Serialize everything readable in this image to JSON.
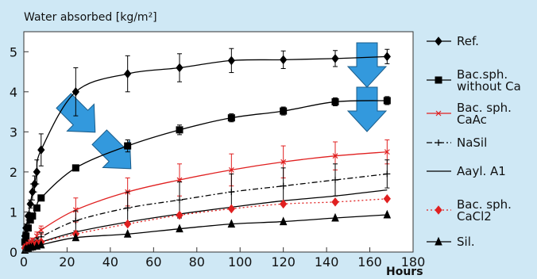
{
  "chart_data": {
    "type": "line",
    "title": "",
    "ylabel": "Water absorbed [kg/m²]",
    "xlabel": "Hours",
    "xlim": [
      0,
      180
    ],
    "ylim": [
      0,
      5.5
    ],
    "xticks": [
      0,
      20,
      40,
      60,
      80,
      100,
      120,
      140,
      160,
      180
    ],
    "yticks": [
      0,
      1,
      2,
      3,
      4,
      5
    ],
    "grid": false,
    "legend_position": "right",
    "series": [
      {
        "name": "Ref.",
        "color": "#000000",
        "dash": "solid",
        "marker": "diamond",
        "marker_fill": "#000000",
        "points": [
          [
            0.5,
            0.4
          ],
          [
            1,
            0.6
          ],
          [
            2,
            0.9
          ],
          [
            3,
            1.2
          ],
          [
            4,
            1.5
          ],
          [
            5,
            1.7
          ],
          [
            6,
            2.0
          ],
          [
            8,
            2.55
          ],
          [
            24,
            4.0
          ],
          [
            48,
            4.45
          ],
          [
            72,
            4.6
          ],
          [
            96,
            4.78
          ],
          [
            120,
            4.8
          ],
          [
            144,
            4.83
          ],
          [
            168,
            4.88
          ]
        ],
        "errors": [
          0.1,
          0.1,
          0.1,
          0.1,
          0.2,
          0.2,
          0.3,
          0.4,
          0.6,
          0.45,
          0.35,
          0.3,
          0.22,
          0.2,
          0.18
        ]
      },
      {
        "name": "Bac.sph. without Ca",
        "color": "#000000",
        "dash": "solid",
        "marker": "square",
        "marker_fill": "#000000",
        "points": [
          [
            0.5,
            0.25
          ],
          [
            1,
            0.4
          ],
          [
            2,
            0.6
          ],
          [
            3,
            0.8
          ],
          [
            4,
            0.9
          ],
          [
            6,
            1.1
          ],
          [
            8,
            1.35
          ],
          [
            24,
            2.1
          ],
          [
            48,
            2.65
          ],
          [
            72,
            3.05
          ],
          [
            96,
            3.35
          ],
          [
            120,
            3.52
          ],
          [
            144,
            3.75
          ],
          [
            168,
            3.78
          ]
        ],
        "errors": [
          0.05,
          0.05,
          0.05,
          0.05,
          0.05,
          0.05,
          0.05,
          0.0,
          0.15,
          0.12,
          0.1,
          0.1,
          0.1,
          0.1
        ]
      },
      {
        "name": "Bac. sph. CaAc",
        "color": "#e02020",
        "dash": "solid",
        "marker": "x",
        "marker_fill": "none",
        "points": [
          [
            0.5,
            0.12
          ],
          [
            1,
            0.15
          ],
          [
            2,
            0.2
          ],
          [
            3,
            0.25
          ],
          [
            4,
            0.3
          ],
          [
            6,
            0.4
          ],
          [
            8,
            0.55
          ],
          [
            24,
            1.05
          ],
          [
            48,
            1.5
          ],
          [
            72,
            1.8
          ],
          [
            96,
            2.05
          ],
          [
            120,
            2.25
          ],
          [
            144,
            2.4
          ],
          [
            168,
            2.5
          ]
        ],
        "errors": [
          0.05,
          0.05,
          0.05,
          0.05,
          0.05,
          0.1,
          0.1,
          0.3,
          0.35,
          0.4,
          0.4,
          0.4,
          0.35,
          0.3
        ]
      },
      {
        "name": "NaSil",
        "color": "#000000",
        "dash": "dashdot",
        "marker": "plus",
        "marker_fill": "none",
        "points": [
          [
            0.5,
            0.1
          ],
          [
            1,
            0.12
          ],
          [
            2,
            0.15
          ],
          [
            3,
            0.2
          ],
          [
            4,
            0.22
          ],
          [
            6,
            0.3
          ],
          [
            8,
            0.38
          ],
          [
            24,
            0.78
          ],
          [
            48,
            1.1
          ],
          [
            72,
            1.3
          ],
          [
            96,
            1.5
          ],
          [
            120,
            1.65
          ],
          [
            144,
            1.8
          ],
          [
            168,
            1.95
          ]
        ],
        "errors": [
          0.05,
          0.05,
          0.05,
          0.05,
          0.05,
          0.05,
          0.1,
          0.25,
          0.4,
          0.45,
          0.45,
          0.45,
          0.4,
          0.35
        ]
      },
      {
        "name": "Aayl. A1",
        "color": "#000000",
        "dash": "solid",
        "marker": "none",
        "marker_fill": "none",
        "points": [
          [
            0,
            0.0
          ],
          [
            2,
            0.1
          ],
          [
            4,
            0.15
          ],
          [
            8,
            0.25
          ],
          [
            24,
            0.5
          ],
          [
            48,
            0.75
          ],
          [
            72,
            0.95
          ],
          [
            96,
            1.12
          ],
          [
            120,
            1.28
          ],
          [
            144,
            1.4
          ],
          [
            168,
            1.55
          ]
        ],
        "errors": []
      },
      {
        "name": "Bac. sph. CaCl2",
        "color": "#e02020",
        "dash": "dotted",
        "marker": "diamond",
        "marker_fill": "#e02020",
        "points": [
          [
            0.5,
            0.1
          ],
          [
            1,
            0.12
          ],
          [
            2,
            0.15
          ],
          [
            3,
            0.17
          ],
          [
            4,
            0.2
          ],
          [
            6,
            0.22
          ],
          [
            8,
            0.25
          ],
          [
            24,
            0.45
          ],
          [
            48,
            0.7
          ],
          [
            72,
            0.92
          ],
          [
            96,
            1.08
          ],
          [
            120,
            1.2
          ],
          [
            144,
            1.25
          ],
          [
            168,
            1.33
          ]
        ],
        "errors": []
      },
      {
        "name": "Sil.",
        "color": "#000000",
        "dash": "solid",
        "marker": "triangle",
        "marker_fill": "#000000",
        "points": [
          [
            0.5,
            0.05
          ],
          [
            1,
            0.08
          ],
          [
            2,
            0.1
          ],
          [
            3,
            0.12
          ],
          [
            4,
            0.13
          ],
          [
            6,
            0.15
          ],
          [
            8,
            0.18
          ],
          [
            24,
            0.36
          ],
          [
            48,
            0.45
          ],
          [
            72,
            0.58
          ],
          [
            96,
            0.7
          ],
          [
            120,
            0.76
          ],
          [
            144,
            0.85
          ],
          [
            168,
            0.93
          ]
        ],
        "errors": []
      }
    ],
    "arrows": [
      {
        "angle": 45,
        "color": "#3399dd"
      },
      {
        "angle": 45,
        "color": "#3399dd"
      },
      {
        "angle": 90,
        "color": "#3399dd"
      },
      {
        "angle": 90,
        "color": "#3399dd"
      }
    ]
  }
}
